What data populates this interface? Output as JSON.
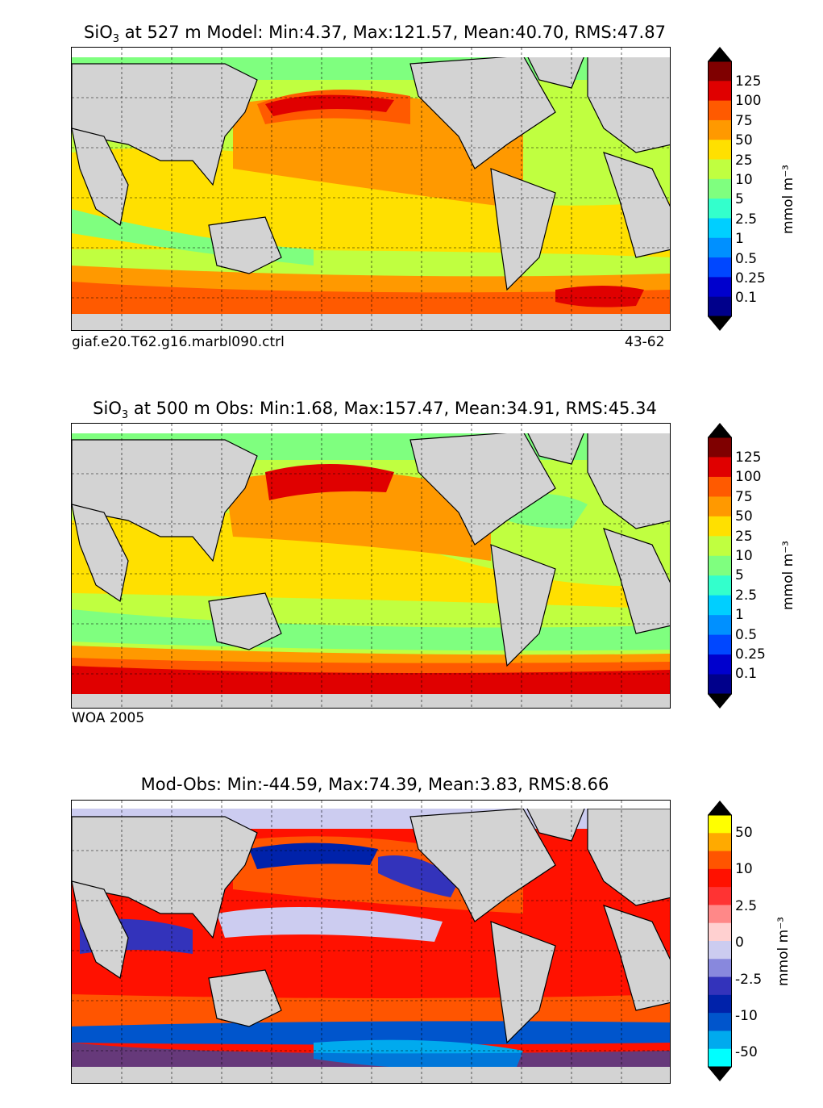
{
  "panels": [
    {
      "id": "model",
      "title_pre": "SiO",
      "title_sub": "3",
      "title_post": " at 527 m Model: Min:4.37, Max:121.57, Mean:40.70, RMS:47.87",
      "foot_left": "giaf.e20.T62.g16.marbl090.ctrl",
      "foot_right": "43-62",
      "cbar_unit": "mmol m⁻³",
      "ticks": [
        "125",
        "100",
        "75",
        "50",
        "25",
        "10",
        "5",
        "2.5",
        "1",
        "0.5",
        "0.25",
        "0.1"
      ]
    },
    {
      "id": "obs",
      "title_pre": "SiO",
      "title_sub": "3",
      "title_post": " at 500 m Obs: Min:1.68, Max:157.47, Mean:34.91, RMS:45.34",
      "foot_left": "WOA 2005",
      "foot_right": "",
      "cbar_unit": "mmol m⁻³",
      "ticks": [
        "125",
        "100",
        "75",
        "50",
        "25",
        "10",
        "5",
        "2.5",
        "1",
        "0.5",
        "0.25",
        "0.1"
      ]
    },
    {
      "id": "diff",
      "title_pre": "",
      "title_sub": "",
      "title_post": "Mod-Obs: Min:-44.59, Max:74.39, Mean:3.83, RMS:8.66",
      "foot_left": "",
      "foot_right": "",
      "cbar_unit": "mmol m⁻³",
      "ticks": [
        "50",
        "10",
        "2.5",
        "0",
        "-2.5",
        "-10",
        "-50"
      ]
    }
  ],
  "colors": {
    "land": "#d3d3d3",
    "seq": [
      "#00008b",
      "#0000cd",
      "#0047ff",
      "#0090ff",
      "#00cfff",
      "#33ffcc",
      "#7fff7f",
      "#c0ff40",
      "#ffe000",
      "#ff9900",
      "#ff5a00",
      "#e00000",
      "#7f0000"
    ],
    "div": [
      "#00ffff",
      "#00aaee",
      "#0055cc",
      "#0022aa",
      "#3333bb",
      "#8888dd",
      "#ccccf0",
      "#ffd0d0",
      "#ff8888",
      "#ff3333",
      "#ff1100",
      "#ff5500",
      "#ffaa00",
      "#ffff00"
    ]
  }
}
